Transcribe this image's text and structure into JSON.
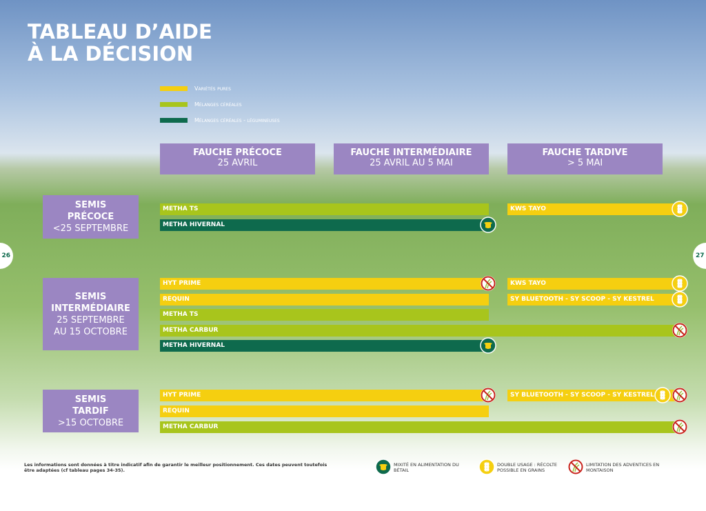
{
  "title": [
    "TABLEAU D’AIDE",
    "À LA DÉCISION"
  ],
  "legend": [
    {
      "label": "Variétés pures",
      "color": "#f5cf10"
    },
    {
      "label": "Mélanges céréales",
      "color": "#a8c51c"
    },
    {
      "label": "Mélanges céréales - légumineuses",
      "color": "#0e6a4d"
    }
  ],
  "columns": [
    {
      "title": "FAUCHE PRÉCOCE",
      "subtitle": "25 AVRIL"
    },
    {
      "title": "FAUCHE INTERMÉDIAIRE",
      "subtitle": "25 AVRIL AU 5 MAI"
    },
    {
      "title": "FAUCHE TARDIVE",
      "subtitle": "> 5 MAI"
    }
  ],
  "rows": [
    {
      "label": [
        "SEMIS",
        "PRÉCOCE"
      ],
      "subtitle": [
        "<25 SEPTEMBRE"
      ],
      "lines": [
        [
          {
            "name": "METHA TS",
            "kind": 1,
            "icons": []
          },
          {
            "name": "KWS TAYO",
            "kind": 0,
            "icons": [
              1
            ]
          }
        ],
        [
          {
            "name": "METHA HIVERNAL",
            "kind": 2,
            "icons": [
              0
            ]
          }
        ]
      ]
    },
    {
      "label": [
        "SEMIS",
        "INTERMÉDIAIRE"
      ],
      "subtitle": [
        "25 SEPTEMBRE",
        "AU 15 OCTOBRE"
      ],
      "lines": [
        [
          {
            "name": "HYT PRIME",
            "kind": 0,
            "icons": [
              2
            ]
          },
          {
            "name": "KWS TAYO",
            "kind": 0,
            "icons": [
              1
            ]
          }
        ],
        [
          {
            "name": "REQUIN",
            "kind": 0,
            "icons": []
          },
          {
            "name": "SY BLUETOOTH - SY SCOOP - SY KESTREL",
            "kind": 0,
            "icons": [
              1
            ]
          }
        ],
        [
          {
            "name": "METHA TS",
            "kind": 1,
            "icons": []
          }
        ],
        [
          {
            "name": "METHA CARBUR",
            "kind": 1,
            "icons": [
              2
            ]
          }
        ],
        [
          {
            "name": "METHA HIVERNAL",
            "kind": 2,
            "icons": [
              0
            ]
          }
        ]
      ]
    },
    {
      "label": [
        "SEMIS",
        "TARDIF"
      ],
      "subtitle": [
        ">15 OCTOBRE"
      ],
      "lines": [
        [
          {
            "name": "HYT PRIME",
            "kind": 0,
            "icons": [
              2
            ]
          },
          {
            "name": "SY BLUETOOTH - SY SCOOP - SY KESTREL",
            "kind": 0,
            "icons": [
              1,
              2
            ]
          }
        ],
        [
          {
            "name": "REQUIN",
            "kind": 0,
            "icons": []
          }
        ],
        [
          {
            "name": "METHA CARBUR",
            "kind": 1,
            "icons": [
              2
            ]
          }
        ]
      ]
    }
  ],
  "pages": [
    "26",
    "27"
  ],
  "footnote": "Les informations sont données à titre indicatif afin de garantir le meilleur positionnement. Ces dates peuvent toutefois être adaptées (cf tableau pages 34-35).",
  "icon_legend": [
    "MIXITÉ EN ALIMENTATION DU BÉTAIL",
    "DOUBLE USAGE : RÉCOLTE POSSIBLE EN GRAINS",
    "LIMITATION DES ADVENTICES EN MONTAISON"
  ]
}
